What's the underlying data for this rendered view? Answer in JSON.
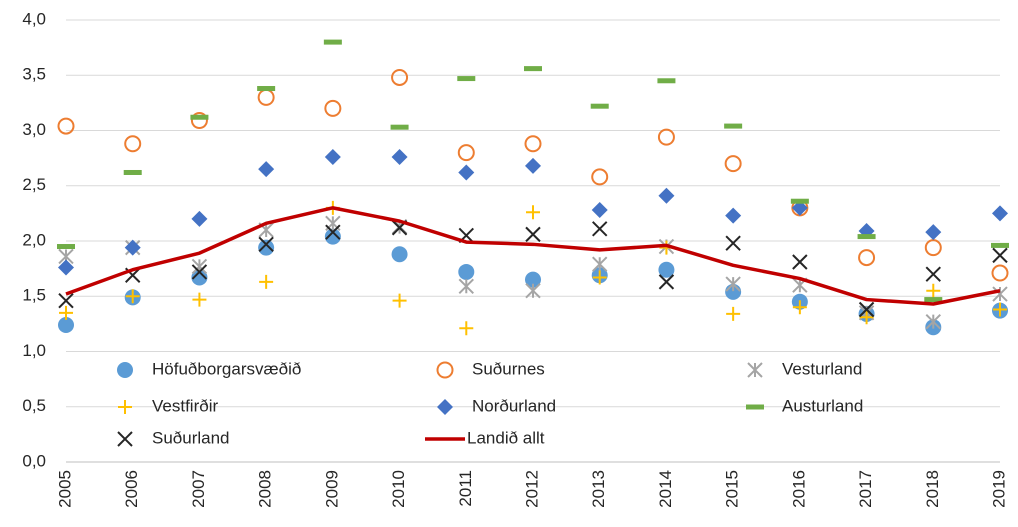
{
  "chart_data": {
    "type": "scatter",
    "categories": [
      "2005",
      "2006",
      "2007",
      "2008",
      "2009",
      "2010",
      "2011",
      "2012",
      "2013",
      "2014",
      "2015",
      "2016",
      "2017",
      "2018",
      "2019"
    ],
    "ylim": [
      0,
      4
    ],
    "yticks": [
      {
        "value": 0,
        "label": "0,0"
      },
      {
        "value": 0.5,
        "label": "0,5"
      },
      {
        "value": 1,
        "label": "1,0"
      },
      {
        "value": 1.5,
        "label": "1,5"
      },
      {
        "value": 2,
        "label": "2,0"
      },
      {
        "value": 2.5,
        "label": "2,5"
      },
      {
        "value": 3,
        "label": "3,0"
      },
      {
        "value": 3.5,
        "label": "3,5"
      },
      {
        "value": 4,
        "label": "4,0"
      }
    ],
    "grid": true,
    "legend": "inside-bottom",
    "series": [
      {
        "name": "Höfuðborgarsvæðið",
        "color": "#5b9bd5",
        "marker": "circle",
        "values": [
          1.24,
          1.49,
          1.67,
          1.94,
          2.04,
          1.88,
          1.72,
          1.65,
          1.69,
          1.74,
          1.54,
          1.45,
          1.34,
          1.22,
          1.37
        ]
      },
      {
        "name": "Suðurnes",
        "color": "#ed7d31",
        "marker": "open-circle",
        "values": [
          3.04,
          2.88,
          3.09,
          3.3,
          3.2,
          3.48,
          2.8,
          2.88,
          2.58,
          2.94,
          2.7,
          2.3,
          1.85,
          1.94,
          1.71
        ]
      },
      {
        "name": "Vesturland",
        "color": "#a5a5a5",
        "marker": "asterisk",
        "values": [
          1.86,
          1.94,
          1.77,
          2.1,
          2.16,
          2.13,
          1.59,
          1.55,
          1.79,
          1.95,
          1.61,
          1.6,
          1.35,
          1.27,
          1.52
        ]
      },
      {
        "name": "Vestfirðir",
        "color": "#ffc000",
        "marker": "plus",
        "values": [
          1.35,
          1.5,
          1.47,
          1.63,
          2.3,
          1.46,
          1.21,
          2.26,
          1.67,
          1.94,
          1.34,
          1.4,
          1.31,
          1.55,
          1.38
        ]
      },
      {
        "name": "Norðurland",
        "color": "#4472c4",
        "marker": "diamond",
        "values": [
          1.76,
          1.94,
          2.2,
          2.65,
          2.76,
          2.76,
          2.62,
          2.68,
          2.28,
          2.41,
          2.23,
          2.3,
          2.09,
          2.08,
          2.25
        ]
      },
      {
        "name": "Austurland",
        "color": "#70ad47",
        "marker": "dash",
        "values": [
          1.95,
          2.62,
          3.12,
          3.38,
          3.8,
          3.03,
          3.47,
          3.56,
          3.22,
          3.45,
          3.04,
          2.36,
          2.04,
          1.47,
          1.96
        ]
      },
      {
        "name": "Suðurland",
        "color": "#262626",
        "marker": "x",
        "values": [
          1.46,
          1.69,
          1.72,
          1.97,
          2.08,
          2.12,
          2.05,
          2.06,
          2.11,
          1.63,
          1.98,
          1.81,
          1.38,
          1.7,
          1.87
        ]
      },
      {
        "name": "Landið allt",
        "color": "#c00000",
        "marker": "line",
        "values": [
          1.52,
          1.74,
          1.89,
          2.16,
          2.3,
          2.18,
          1.99,
          1.97,
          1.92,
          1.96,
          1.78,
          1.66,
          1.47,
          1.43,
          1.55
        ]
      }
    ]
  }
}
